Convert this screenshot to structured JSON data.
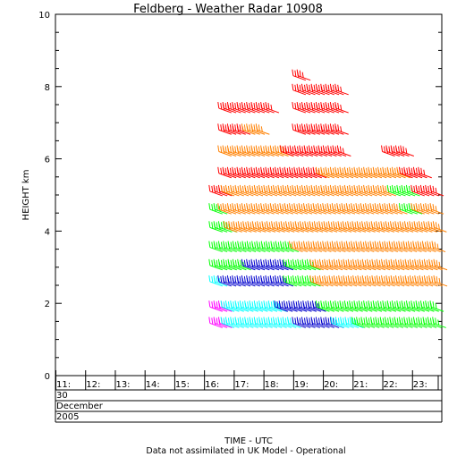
{
  "chart_data": {
    "type": "wind-barb-profile",
    "title": "Feldberg - Weather Radar 10908",
    "ylabel": "HEIGHT km",
    "xlabel": "TIME - UTC",
    "footnote": "Data not assimilated in UK Model - Operational",
    "ylim": [
      0,
      10
    ],
    "yticks": [
      0,
      2,
      4,
      6,
      8,
      10
    ],
    "xlim": [
      11,
      24
    ],
    "hour_labels": [
      "11:",
      "12:",
      "13:",
      "14:",
      "15:",
      "16:",
      "17:",
      "18:",
      "19:",
      "20:",
      "21:",
      "22:",
      "23:"
    ],
    "date_rows": [
      "30",
      "December",
      "2005"
    ],
    "speed_colors": [
      "#ff00ff",
      "#00ffff",
      "#0000cc",
      "#00ff00",
      "#ff8000",
      "#ff0000"
    ],
    "profiles": [
      {
        "height": 1.45,
        "segments": [
          {
            "start": 16.2,
            "end": 16.6,
            "color": "#ff00ff"
          },
          {
            "start": 16.6,
            "end": 19.0,
            "color": "#00ffff"
          },
          {
            "start": 19.0,
            "end": 20.3,
            "color": "#0000cc"
          },
          {
            "start": 20.3,
            "end": 21.0,
            "color": "#00ffff"
          },
          {
            "start": 21.0,
            "end": 23.8,
            "color": "#00ff00"
          }
        ]
      },
      {
        "height": 1.9,
        "segments": [
          {
            "start": 16.2,
            "end": 16.6,
            "color": "#ff00ff"
          },
          {
            "start": 16.6,
            "end": 18.4,
            "color": "#00ffff"
          },
          {
            "start": 18.4,
            "end": 19.8,
            "color": "#0000cc"
          },
          {
            "start": 19.8,
            "end": 23.8,
            "color": "#00ff00"
          }
        ]
      },
      {
        "height": 2.6,
        "segments": [
          {
            "start": 16.2,
            "end": 16.5,
            "color": "#00ffff"
          },
          {
            "start": 16.5,
            "end": 18.7,
            "color": "#0000cc"
          },
          {
            "start": 18.7,
            "end": 19.6,
            "color": "#00ff00"
          },
          {
            "start": 19.6,
            "end": 23.8,
            "color": "#ff8000"
          }
        ]
      },
      {
        "height": 3.05,
        "segments": [
          {
            "start": 16.2,
            "end": 17.3,
            "color": "#00ff00"
          },
          {
            "start": 17.3,
            "end": 18.7,
            "color": "#0000cc"
          },
          {
            "start": 18.7,
            "end": 19.6,
            "color": "#00ff00"
          },
          {
            "start": 19.6,
            "end": 23.8,
            "color": "#ff8000"
          }
        ]
      },
      {
        "height": 3.55,
        "segments": [
          {
            "start": 16.2,
            "end": 18.9,
            "color": "#00ff00"
          },
          {
            "start": 18.9,
            "end": 23.8,
            "color": "#ff8000"
          }
        ]
      },
      {
        "height": 4.1,
        "segments": [
          {
            "start": 16.2,
            "end": 16.7,
            "color": "#00ff00"
          },
          {
            "start": 16.7,
            "end": 23.8,
            "color": "#ff8000"
          }
        ]
      },
      {
        "height": 4.6,
        "segments": [
          {
            "start": 16.2,
            "end": 16.5,
            "color": "#00ff00"
          },
          {
            "start": 16.5,
            "end": 22.6,
            "color": "#ff8000"
          },
          {
            "start": 22.6,
            "end": 23.0,
            "color": "#00ff00"
          },
          {
            "start": 23.0,
            "end": 23.8,
            "color": "#ff8000"
          }
        ]
      },
      {
        "height": 5.1,
        "segments": [
          {
            "start": 16.2,
            "end": 16.6,
            "color": "#ff0000"
          },
          {
            "start": 16.6,
            "end": 22.2,
            "color": "#ff8000"
          },
          {
            "start": 22.2,
            "end": 23.0,
            "color": "#00ff00"
          },
          {
            "start": 23.0,
            "end": 23.8,
            "color": "#ff0000"
          }
        ]
      },
      {
        "height": 5.6,
        "segments": [
          {
            "start": 16.5,
            "end": 19.8,
            "color": "#ff0000"
          },
          {
            "start": 19.8,
            "end": 22.6,
            "color": "#ff8000"
          },
          {
            "start": 22.6,
            "end": 23.4,
            "color": "#ff0000"
          }
        ]
      },
      {
        "height": 6.2,
        "segments": [
          {
            "start": 16.5,
            "end": 18.6,
            "color": "#ff8000"
          },
          {
            "start": 18.6,
            "end": 20.6,
            "color": "#ff0000"
          },
          {
            "start": 22.0,
            "end": 22.8,
            "color": "#ff0000"
          }
        ]
      },
      {
        "height": 6.8,
        "segments": [
          {
            "start": 16.5,
            "end": 17.3,
            "color": "#ff0000"
          },
          {
            "start": 17.3,
            "end": 17.8,
            "color": "#ff8000"
          },
          {
            "start": 19.0,
            "end": 20.5,
            "color": "#ff0000"
          }
        ]
      },
      {
        "height": 7.4,
        "segments": [
          {
            "start": 16.5,
            "end": 18.2,
            "color": "#ff0000"
          },
          {
            "start": 19.0,
            "end": 20.6,
            "color": "#ff0000"
          }
        ]
      },
      {
        "height": 7.9,
        "segments": [
          {
            "start": 19.0,
            "end": 20.5,
            "color": "#ff0000"
          }
        ]
      },
      {
        "height": 8.3,
        "segments": [
          {
            "start": 19.0,
            "end": 19.3,
            "color": "#ff0000"
          }
        ]
      }
    ]
  }
}
